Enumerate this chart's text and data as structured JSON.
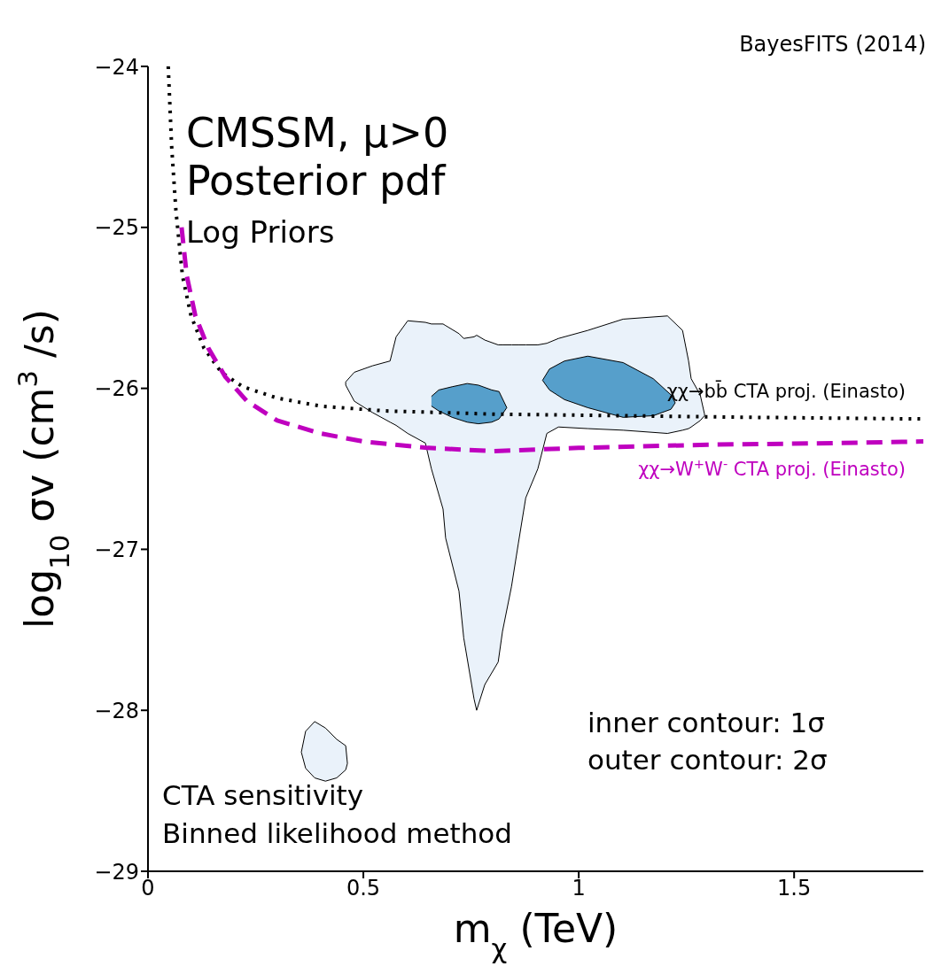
{
  "chart_data": {
    "type": "line",
    "title": "BayesFITS (2014)",
    "xlabel": "m$_{χ}$ (TeV)",
    "ylabel": "log$_{10}$ σv (cm$^{3}$ /s)",
    "xlim": [
      0,
      1.8
    ],
    "xticks": [
      0,
      0.5,
      1,
      1.5
    ],
    "ylim": [
      -29,
      -24
    ],
    "yticks": [
      -29,
      -28,
      -27,
      -26,
      -25,
      -24
    ],
    "annotations": [
      "CMSSM, μ>0",
      "Posterior pdf",
      "Log Priors",
      "CTA sensitivity",
      "Binned likelihood method",
      "inner contour: 1σ",
      "outer contour: 2σ"
    ],
    "series": [
      {
        "type": "area",
        "color": "#eaf2fa",
        "x": [
          0.459,
          0.479,
          0.521,
          0.562,
          0.576,
          0.603,
          0.644,
          0.658,
          0.685,
          0.691,
          0.722,
          0.733,
          0.757,
          0.763,
          0.782,
          0.813,
          0.823,
          0.844,
          0.86,
          0.877,
          0.905,
          0.926,
          0.953,
          1.021,
          1.103,
          1.206,
          1.241,
          1.255,
          1.261,
          1.282,
          1.292,
          1.292,
          1.282,
          1.261,
          1.255,
          1.241,
          1.206,
          1.103,
          1.021,
          0.953,
          0.926,
          0.905,
          0.877,
          0.86,
          0.844,
          0.823,
          0.813,
          0.782,
          0.763,
          0.757,
          0.733,
          0.722,
          0.691,
          0.685,
          0.658,
          0.644,
          0.603,
          0.576,
          0.562,
          0.521,
          0.479,
          0.459,
          0.459
        ],
        "values": [
          -25.96,
          -25.9,
          -25.86,
          -25.83,
          -25.68,
          -25.58,
          -25.59,
          -25.6,
          -25.6,
          -25.61,
          -25.66,
          -25.69,
          -25.68,
          -25.67,
          -25.7,
          -25.73,
          -25.73,
          -25.73,
          -25.73,
          -25.73,
          -25.73,
          -25.72,
          -25.69,
          -25.64,
          -25.57,
          -25.55,
          -25.64,
          -25.83,
          -25.94,
          -26.04,
          -26.16,
          -26.17,
          -26.2,
          -26.24,
          -26.25,
          -26.26,
          -26.28,
          -26.26,
          -26.25,
          -26.24,
          -26.28,
          -26.5,
          -26.68,
          -26.96,
          -27.23,
          -27.51,
          -27.7,
          -27.84,
          -28.0,
          -27.93,
          -27.55,
          -27.26,
          -26.93,
          -26.75,
          -26.5,
          -26.34,
          -26.28,
          -26.23,
          -26.21,
          -26.15,
          -26.08,
          -25.98,
          -25.96
        ]
      },
      {
        "type": "area",
        "color": "#eaf2fa",
        "x": [
          0.356,
          0.366,
          0.387,
          0.412,
          0.438,
          0.459,
          0.463,
          0.459,
          0.438,
          0.412,
          0.387,
          0.366,
          0.356
        ],
        "values": [
          -28.26,
          -28.13,
          -28.07,
          -28.11,
          -28.18,
          -28.22,
          -28.33,
          -28.37,
          -28.42,
          -28.44,
          -28.42,
          -28.36,
          -28.26
        ]
      },
      {
        "type": "area",
        "color": "#569fcb",
        "x": [
          0.658,
          0.675,
          0.706,
          0.741,
          0.767,
          0.798,
          0.815,
          0.833,
          0.815,
          0.798,
          0.767,
          0.741,
          0.706,
          0.675,
          0.658
        ],
        "values": [
          -26.05,
          -26.01,
          -25.99,
          -25.97,
          -25.98,
          -26.01,
          -26.02,
          -26.12,
          -26.19,
          -26.21,
          -26.22,
          -26.21,
          -26.18,
          -26.14,
          -26.11
        ]
      },
      {
        "type": "area",
        "color": "#569fcb",
        "x": [
          0.916,
          0.932,
          0.967,
          1.021,
          1.103,
          1.173,
          1.214,
          1.224,
          1.214,
          1.173,
          1.103,
          1.021,
          0.967,
          0.932,
          0.916
        ],
        "values": [
          -25.95,
          -25.88,
          -25.83,
          -25.8,
          -25.84,
          -25.94,
          -26.04,
          -26.09,
          -26.13,
          -26.17,
          -26.18,
          -26.12,
          -26.07,
          -26.01,
          -25.95
        ]
      },
      {
        "name": "χχ→bb̄ CTA proj. (Einasto)",
        "color": "#000000",
        "line_style": "dotted",
        "x": [
          0.047,
          0.055,
          0.065,
          0.08,
          0.1,
          0.13,
          0.17,
          0.22,
          0.3,
          0.4,
          0.55,
          0.8,
          1.1,
          1.4,
          1.8
        ],
        "values": [
          -24,
          -24.5,
          -24.9,
          -25.3,
          -25.55,
          -25.75,
          -25.9,
          -25.99,
          -26.06,
          -26.11,
          -26.14,
          -26.16,
          -26.17,
          -26.18,
          -26.19
        ]
      },
      {
        "name": "χχ→W$^{+}$W$^{-}$ CTA proj. (Einasto)",
        "color": "#bf00bf",
        "line_style": "dashed",
        "x": [
          0.078,
          0.09,
          0.11,
          0.14,
          0.18,
          0.23,
          0.3,
          0.4,
          0.5,
          0.65,
          0.8,
          1.0,
          1.3,
          1.6,
          1.8
        ],
        "values": [
          -25.0,
          -25.3,
          -25.55,
          -25.75,
          -25.93,
          -26.08,
          -26.2,
          -26.28,
          -26.33,
          -26.37,
          -26.39,
          -26.37,
          -26.35,
          -26.34,
          -26.33
        ]
      }
    ]
  }
}
